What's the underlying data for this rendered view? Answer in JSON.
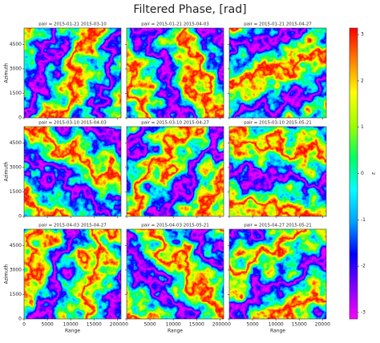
{
  "chart_data": {
    "type": "image-grid",
    "title": "Filtered Phase, [rad]",
    "panels": [
      {
        "title": "pair = 2015-01-21 2015-03-10"
      },
      {
        "title": "pair = 2015-01-21 2015-04-03"
      },
      {
        "title": "pair = 2015-01-21 2015-04-27"
      },
      {
        "title": "pair = 2015-03-10 2015-04-03"
      },
      {
        "title": "pair = 2015-03-10 2015-04-27"
      },
      {
        "title": "pair = 2015-03-10 2015-05-21"
      },
      {
        "title": "pair = 2015-04-03 2015-04-27"
      },
      {
        "title": "pair = 2015-04-03 2015-05-21"
      },
      {
        "title": "pair = 2015-04-27 2015-05-21"
      }
    ],
    "xlabel": "Range",
    "ylabel": "Azimuth",
    "xlim": [
      0,
      20800
    ],
    "xticks": [
      0,
      5000,
      10000,
      15000,
      20000
    ],
    "ylim": [
      0,
      5500
    ],
    "yticks": [
      0,
      1500,
      3000,
      4500
    ],
    "colormap": [
      "#ff00ff",
      "#8000ff",
      "#0000ff",
      "#00a0ff",
      "#00ffff",
      "#00ff60",
      "#a0ff00",
      "#ffff00",
      "#ff8000",
      "#ff0000"
    ],
    "colorbar": {
      "label": "z",
      "lim": [
        -3.14,
        3.14
      ],
      "ticks": [
        -3,
        -2,
        -1,
        0,
        1,
        2,
        3
      ]
    }
  }
}
